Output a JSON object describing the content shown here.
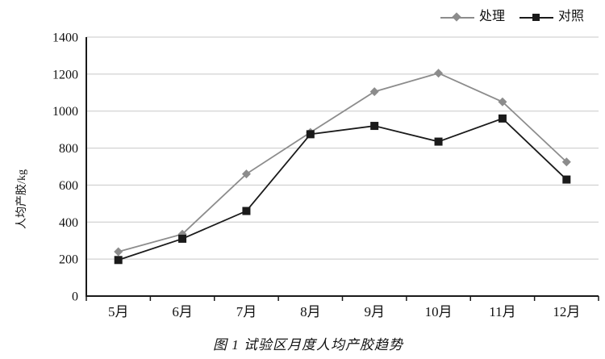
{
  "chart_data": {
    "type": "line",
    "title": "图 1  试验区月度人均产胶趋势",
    "ylabel": "人均产胶/kg",
    "xlabel": "",
    "categories": [
      "5月",
      "6月",
      "7月",
      "8月",
      "9月",
      "10月",
      "11月",
      "12月"
    ],
    "series": [
      {
        "name": "处理",
        "marker": "diamond",
        "color": "#8c8c8c",
        "values": [
          240,
          335,
          660,
          885,
          1105,
          1205,
          1050,
          725
        ]
      },
      {
        "name": "对照",
        "marker": "square",
        "color": "#1a1a1a",
        "values": [
          195,
          310,
          460,
          875,
          920,
          835,
          960,
          630
        ]
      }
    ],
    "ylim": [
      0,
      1400
    ],
    "ytick_step": 200,
    "grid": true,
    "legend_position": "top-right",
    "colors": {
      "grid": "#c8c8c8",
      "axis": "#1a1a1a",
      "text": "#111111"
    }
  }
}
